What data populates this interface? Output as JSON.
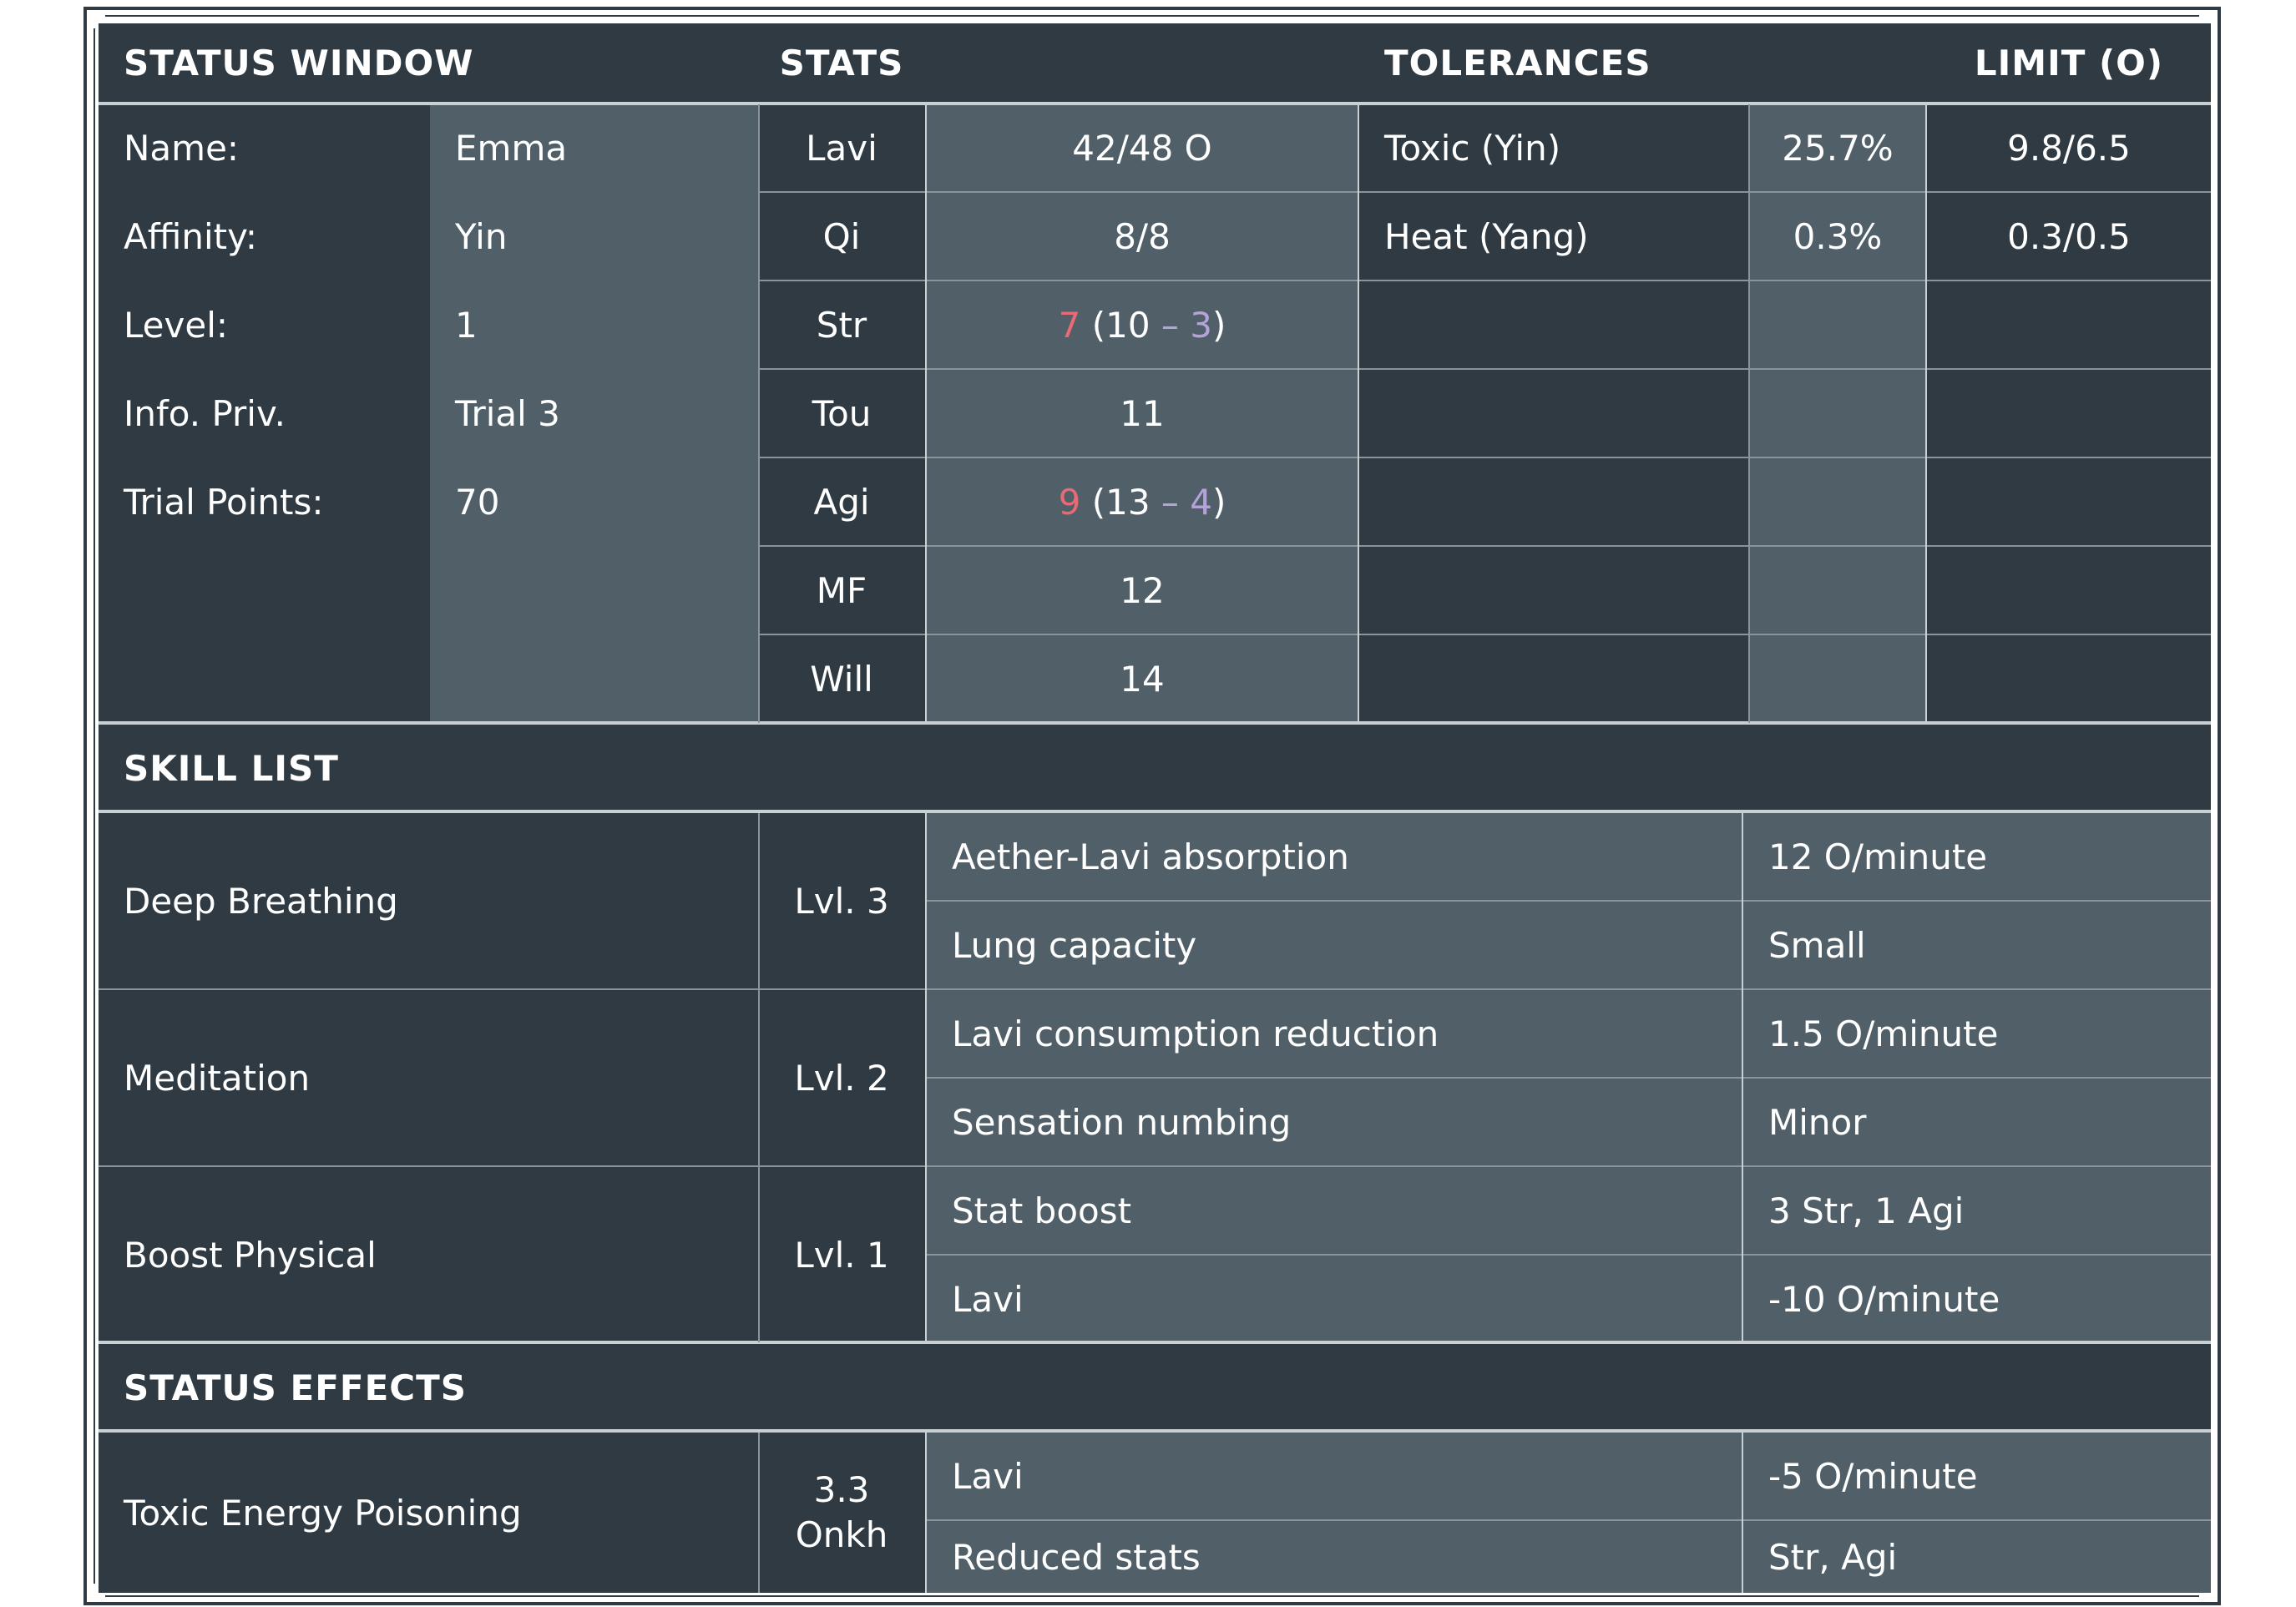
{
  "headers": {
    "status_window": "STATUS WINDOW",
    "stats": "STATS",
    "tolerances": "TOLERANCES",
    "limit": "LIMIT (O)"
  },
  "profile": [
    {
      "label": "Name:",
      "value": "Emma"
    },
    {
      "label": "Affinity:",
      "value": "Yin"
    },
    {
      "label": "Level:",
      "value": "1"
    },
    {
      "label": "Info. Priv.",
      "value": "Trial 3"
    },
    {
      "label": "Trial Points:",
      "value": "70"
    }
  ],
  "stats": [
    {
      "name": "Lavi",
      "value": "42/48 O"
    },
    {
      "name": "Qi",
      "value": "8/8"
    },
    {
      "name": "Str",
      "value": "",
      "current": "7",
      "base": "10",
      "minus": "3"
    },
    {
      "name": "Tou",
      "value": "11"
    },
    {
      "name": "Agi",
      "value": "",
      "current": "9",
      "base": "13",
      "minus": "4"
    },
    {
      "name": "MF",
      "value": "12"
    },
    {
      "name": "Will",
      "value": "14"
    }
  ],
  "tolerances": [
    {
      "name": "Toxic (Yin)",
      "percent": "25.7%",
      "limit": "9.8/6.5"
    },
    {
      "name": "Heat (Yang)",
      "percent": "0.3%",
      "limit": "0.3/0.5"
    }
  ],
  "skill_list": {
    "title": "SKILL LIST",
    "skills": [
      {
        "name": "Deep Breathing",
        "level": "Lvl. 3",
        "effects": [
          {
            "name": "Aether-Lavi absorption",
            "value": "12 O/minute"
          },
          {
            "name": "Lung capacity",
            "value": "Small"
          }
        ]
      },
      {
        "name": "Meditation",
        "level": "Lvl. 2",
        "effects": [
          {
            "name": "Lavi consumption reduction",
            "value": "1.5 O/minute"
          },
          {
            "name": "Sensation numbing",
            "value": "Minor"
          }
        ]
      },
      {
        "name": "Boost Physical",
        "level": "Lvl. 1",
        "effects": [
          {
            "name": "Stat boost",
            "value": "3 Str, 1 Agi"
          },
          {
            "name": "Lavi",
            "value": "-10 O/minute"
          }
        ]
      }
    ]
  },
  "status_effects": {
    "title": "STATUS EFFECTS",
    "effects": [
      {
        "name": "Toxic Energy Poisoning",
        "duration_line1": "3.3",
        "duration_line2": "Onkh",
        "effects": [
          {
            "name": "Lavi",
            "value": "-5 O/minute"
          },
          {
            "name": "Reduced stats",
            "value": "Str, Agi"
          }
        ]
      }
    ]
  },
  "colors": {
    "panel_dark": "#2f3a42",
    "panel_light": "#516068",
    "text": "#ffffff",
    "reduced_value": "#e86a74",
    "modifier": "#b4a2d8"
  }
}
